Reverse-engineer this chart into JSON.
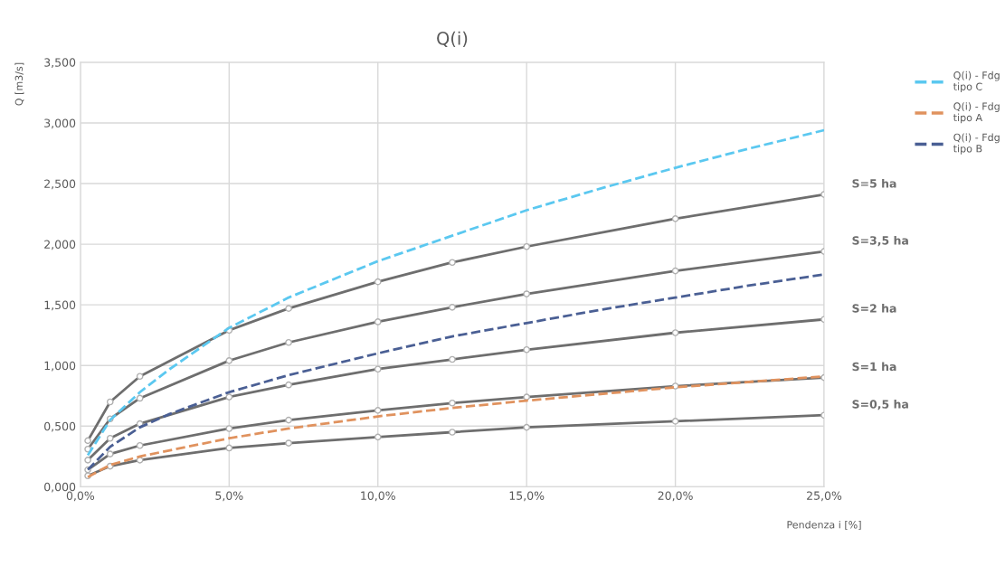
{
  "chart_data": {
    "type": "line",
    "title": "Q(i)",
    "xlabel": "Pendenza i [%]",
    "ylabel": "Q [m3/s]",
    "xlim": [
      0,
      25
    ],
    "xticks": [
      {
        "value": 0,
        "label": "0,0%"
      },
      {
        "value": 5,
        "label": "5,0%"
      },
      {
        "value": 10,
        "label": "10,0%"
      },
      {
        "value": 15,
        "label": "15,0%"
      },
      {
        "value": 20,
        "label": "20,0%"
      },
      {
        "value": 25,
        "label": "25,0%"
      }
    ],
    "ylim": [
      0,
      3.5
    ],
    "yticks": [
      {
        "value": 0,
        "label": "0,000"
      },
      {
        "value": 0.5,
        "label": "0,500"
      },
      {
        "value": 1,
        "label": "1,000"
      },
      {
        "value": 1.5,
        "label": "1,500"
      },
      {
        "value": 2,
        "label": "2,000"
      },
      {
        "value": 2.5,
        "label": "2,500"
      },
      {
        "value": 3,
        "label": "3,000"
      },
      {
        "value": 3.5,
        "label": "3,500"
      }
    ],
    "grid": true,
    "legend": "top right",
    "series": [
      {
        "name": "S=5 ha",
        "color": "#6e6e6e",
        "marker": "circle",
        "line_style": "solid",
        "x": [
          0.25,
          1,
          2,
          5,
          7,
          10,
          12.5,
          15,
          20,
          25
        ],
        "values": [
          0.38,
          0.7,
          0.91,
          1.29,
          1.47,
          1.69,
          1.85,
          1.98,
          2.21,
          2.41
        ]
      },
      {
        "name": "S=3,5 ha",
        "color": "#6e6e6e",
        "marker": "circle",
        "line_style": "solid",
        "x": [
          0.25,
          1,
          2,
          5,
          7,
          10,
          12.5,
          15,
          20,
          25
        ],
        "values": [
          0.31,
          0.56,
          0.73,
          1.04,
          1.19,
          1.36,
          1.48,
          1.59,
          1.78,
          1.94
        ]
      },
      {
        "name": "S=2 ha",
        "color": "#6e6e6e",
        "marker": "circle",
        "line_style": "solid",
        "x": [
          0.25,
          1,
          2,
          5,
          7,
          10,
          12.5,
          15,
          20,
          25
        ],
        "values": [
          0.22,
          0.4,
          0.52,
          0.74,
          0.84,
          0.97,
          1.05,
          1.13,
          1.27,
          1.38
        ]
      },
      {
        "name": "S=1 ha",
        "color": "#6e6e6e",
        "marker": "circle",
        "line_style": "solid",
        "x": [
          0.25,
          1,
          2,
          5,
          7,
          10,
          12.5,
          15,
          20,
          25
        ],
        "values": [
          0.14,
          0.27,
          0.34,
          0.48,
          0.55,
          0.63,
          0.69,
          0.74,
          0.83,
          0.9
        ]
      },
      {
        "name": "S=0,5 ha",
        "color": "#6e6e6e",
        "marker": "circle",
        "line_style": "solid",
        "x": [
          0.25,
          1,
          2,
          5,
          7,
          10,
          12.5,
          15,
          20,
          25
        ],
        "values": [
          0.09,
          0.17,
          0.22,
          0.32,
          0.36,
          0.41,
          0.45,
          0.49,
          0.54,
          0.59
        ]
      },
      {
        "name": "Q(i) - Fdg\ntipo C",
        "color": "#5bc8f0",
        "marker": "none",
        "line_style": "dashed",
        "x": [
          0.25,
          1,
          2,
          3,
          4,
          5,
          7,
          10,
          12.5,
          15,
          17.5,
          20,
          22.5,
          25
        ],
        "values": [
          0.26,
          0.55,
          0.78,
          0.97,
          1.14,
          1.31,
          1.56,
          1.86,
          2.07,
          2.28,
          2.46,
          2.63,
          2.79,
          2.94
        ]
      },
      {
        "name": "Q(i) - Fdg\ntipo A",
        "color": "#e0925e",
        "marker": "none",
        "line_style": "dashed",
        "x": [
          0.25,
          1,
          2,
          5,
          7,
          10,
          12.5,
          15,
          20,
          25
        ],
        "values": [
          0.08,
          0.18,
          0.25,
          0.4,
          0.48,
          0.58,
          0.65,
          0.71,
          0.82,
          0.91
        ]
      },
      {
        "name": "Q(i) - Fdg\ntipo B",
        "color": "#4a5f94",
        "marker": "none",
        "line_style": "dashed",
        "x": [
          0.25,
          1,
          2,
          3,
          5,
          7,
          10,
          12.5,
          15,
          17.5,
          20,
          22.5,
          25
        ],
        "values": [
          0.14,
          0.33,
          0.49,
          0.6,
          0.78,
          0.92,
          1.1,
          1.24,
          1.35,
          1.46,
          1.56,
          1.66,
          1.75
        ]
      }
    ]
  }
}
